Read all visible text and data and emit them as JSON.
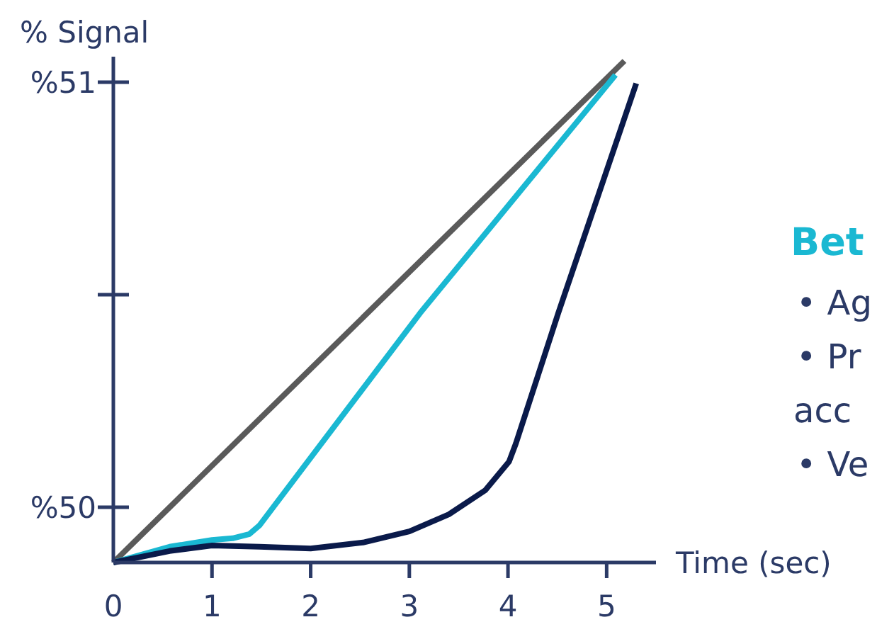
{
  "chart_data": {
    "type": "line",
    "xlabel": "Time (sec)",
    "ylabel": "% Signal",
    "xlim": [
      0,
      5.5
    ],
    "ylim": [
      49.87,
      51.06
    ],
    "xticks": [
      0,
      1,
      2,
      3,
      4,
      5
    ],
    "yticks": [
      {
        "value": 50,
        "label": "%50"
      },
      {
        "value": 50.5,
        "label": null
      },
      {
        "value": 51,
        "label": "%51"
      }
    ],
    "grid": false,
    "marker": "none",
    "line_style": "solid",
    "series": [
      {
        "color": "#5a5a5a",
        "x": [
          0,
          5.18
        ],
        "values": [
          49.87,
          51.05
        ]
      },
      {
        "color": "#1ab8d2",
        "x": [
          0,
          0.57,
          1,
          1.21,
          1.38,
          1.48,
          3.11,
          5.09
        ],
        "values": [
          49.87,
          49.907,
          49.923,
          49.927,
          49.937,
          49.957,
          50.457,
          51.017
        ]
      },
      {
        "color": "#0a1a4a",
        "x": [
          0,
          0.57,
          1,
          1.48,
          2,
          2.53,
          3,
          3.4,
          3.77,
          4.01,
          4.08,
          4.51,
          5.3
        ],
        "values": [
          49.87,
          49.897,
          49.91,
          49.907,
          49.903,
          49.917,
          49.943,
          49.983,
          50.04,
          50.107,
          50.15,
          50.457,
          50.997
        ]
      }
    ],
    "annotations": [
      "Bet",
      "• Ag",
      "• Pr",
      "acc",
      "• Ve"
    ]
  }
}
